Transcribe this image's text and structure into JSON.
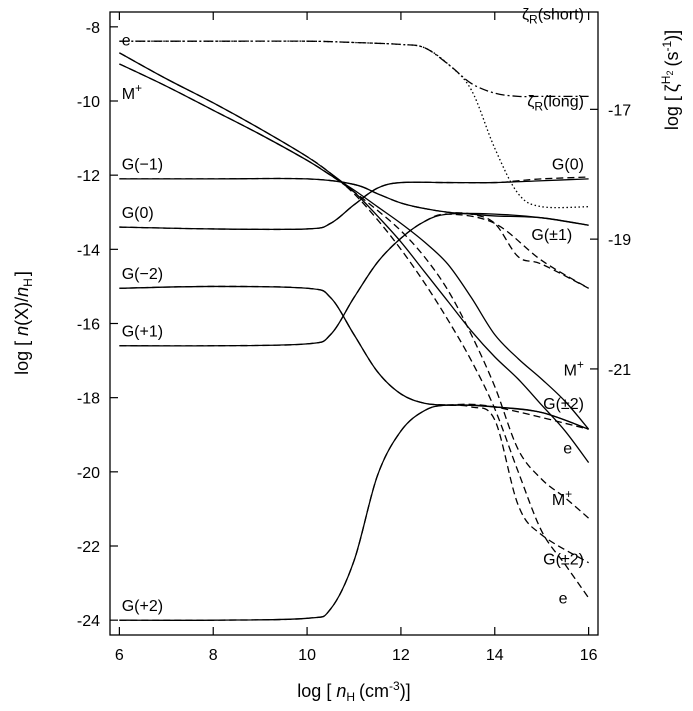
{
  "chart_data": {
    "type": "line",
    "xlabel": "log [ n H (cm-3)]",
    "ylabel": "log [ n(X)/n H ]",
    "y2label": "log [ ζH2 (s-1) ]",
    "xlim": [
      5.8,
      16.2
    ],
    "ylim": [
      -24.4,
      -7.6
    ],
    "y2lim": [
      -25.1,
      -15.5
    ],
    "xticks": [
      6,
      8,
      10,
      12,
      14,
      16
    ],
    "yticks": [
      -8,
      -10,
      -12,
      -14,
      -16,
      -18,
      -20,
      -22,
      -24
    ],
    "y2ticks": [
      -17,
      -19,
      -21
    ],
    "x_tick_labels": [
      "6",
      "8",
      "10",
      "12",
      "14",
      "16"
    ],
    "y_tick_labels": [
      "-8",
      "-10",
      "-12",
      "-14",
      "-16",
      "-18",
      "-20",
      "-22",
      "-24"
    ],
    "y2_tick_labels": [
      "-17",
      "-19",
      "-21"
    ],
    "axis_titles": {
      "x": {
        "pre": "log [",
        "n": "n",
        "sub": "H",
        "unit": "(cm",
        "sup": "-3",
        "post": ")]"
      },
      "y": {
        "pre": "log [",
        "n": "n",
        "mid": "(X)/",
        "n2": "n",
        "sub": "H",
        "post": "]"
      },
      "y2": {
        "pre": "log [",
        "zeta": "ζ",
        "sup": "H",
        "supsub": "2",
        "unit": "(s",
        "unitsup": "-1",
        "post": ")]"
      }
    },
    "series": [
      {
        "name": "e (solid)",
        "style": "solid",
        "x": [
          6,
          7,
          8,
          9,
          10,
          10.5,
          11,
          11.5,
          12,
          12.5,
          13,
          13.5,
          14,
          14.5,
          15,
          15.5,
          16
        ],
        "y": [
          -8.7,
          -9.4,
          -10.05,
          -10.75,
          -11.5,
          -11.95,
          -12.45,
          -13.1,
          -13.8,
          -14.6,
          -15.4,
          -16.2,
          -16.9,
          -17.5,
          -18.2,
          -18.9,
          -19.75
        ]
      },
      {
        "name": "M+ (solid)",
        "style": "solid",
        "x": [
          6,
          7,
          8,
          9,
          10,
          10.5,
          11,
          11.5,
          12,
          12.5,
          13,
          13.5,
          14,
          14.5,
          15,
          15.5,
          16
        ],
        "y": [
          -9.0,
          -9.6,
          -10.25,
          -10.9,
          -11.6,
          -12.0,
          -12.4,
          -12.85,
          -13.3,
          -13.8,
          -14.4,
          -15.3,
          -16.3,
          -16.95,
          -17.5,
          -18.1,
          -18.85
        ]
      },
      {
        "name": "G(-1) (solid)",
        "style": "solid",
        "x": [
          6,
          8,
          10,
          11,
          11.5,
          12,
          12.5,
          13,
          13.5,
          14,
          15,
          16
        ],
        "y": [
          -12.1,
          -12.1,
          -12.1,
          -12.25,
          -12.5,
          -12.75,
          -12.9,
          -13.0,
          -13.05,
          -13.1,
          -13.15,
          -13.35
        ]
      },
      {
        "name": "G(0) (solid)",
        "style": "solid",
        "x": [
          6,
          8,
          10,
          10.5,
          11,
          11.5,
          12,
          13,
          14,
          15,
          16
        ],
        "y": [
          -13.4,
          -13.45,
          -13.45,
          -13.3,
          -12.8,
          -12.35,
          -12.2,
          -12.2,
          -12.2,
          -12.15,
          -12.1
        ]
      },
      {
        "name": "G(-2) (solid)",
        "style": "solid",
        "x": [
          6,
          8,
          10,
          10.5,
          11,
          11.5,
          12,
          12.5,
          13,
          13.5,
          14,
          15,
          16
        ],
        "y": [
          -15.05,
          -15.0,
          -15.05,
          -15.3,
          -16.3,
          -17.3,
          -17.9,
          -18.15,
          -18.2,
          -18.2,
          -18.25,
          -18.4,
          -18.85
        ]
      },
      {
        "name": "G(+1) (solid)",
        "style": "solid",
        "x": [
          6,
          8,
          10,
          10.5,
          11,
          11.5,
          12,
          12.5,
          13,
          14,
          15,
          16
        ],
        "y": [
          -16.6,
          -16.6,
          -16.55,
          -16.3,
          -15.3,
          -14.35,
          -13.7,
          -13.25,
          -13.05,
          -13.05,
          -13.15,
          -13.35
        ]
      },
      {
        "name": "G(+2) (solid)",
        "style": "solid",
        "x": [
          6,
          8,
          10,
          10.5,
          11,
          11.5,
          12,
          12.5,
          13,
          14,
          15,
          16
        ],
        "y": [
          -24.0,
          -24.0,
          -23.95,
          -23.7,
          -22.4,
          -20.1,
          -18.9,
          -18.35,
          -18.2,
          -18.25,
          -18.4,
          -18.85
        ]
      },
      {
        "name": "e (dashed)",
        "style": "dashed",
        "x": [
          6,
          7,
          8,
          9,
          10,
          10.5,
          11,
          11.5,
          12,
          12.5,
          13,
          13.5,
          14,
          14.5,
          15,
          15.5,
          16
        ],
        "y": [
          -8.7,
          -9.4,
          -10.05,
          -10.75,
          -11.5,
          -11.95,
          -12.5,
          -13.2,
          -14.0,
          -14.9,
          -15.9,
          -17.0,
          -18.3,
          -20.0,
          -21.6,
          -22.5,
          -23.4
        ]
      },
      {
        "name": "M+ (dashed)",
        "style": "dashed",
        "x": [
          6,
          7,
          8,
          9,
          10,
          10.5,
          11,
          11.5,
          12,
          12.5,
          13,
          13.5,
          14,
          14.5,
          15,
          15.5,
          16
        ],
        "y": [
          -9.0,
          -9.6,
          -10.25,
          -10.9,
          -11.6,
          -12.0,
          -12.45,
          -12.95,
          -13.5,
          -14.2,
          -15.1,
          -16.3,
          -17.7,
          -19.4,
          -20.2,
          -20.7,
          -21.25
        ]
      },
      {
        "name": "G(0) (dashed)",
        "style": "dashed",
        "x": [
          6,
          8,
          10,
          10.5,
          11,
          11.5,
          12,
          13,
          14,
          14.5,
          15,
          16
        ],
        "y": [
          -13.4,
          -13.45,
          -13.45,
          -13.3,
          -12.8,
          -12.35,
          -12.2,
          -12.2,
          -12.2,
          -12.15,
          -12.1,
          -12.05
        ]
      },
      {
        "name": "G(±1) (dashed)",
        "style": "dashed",
        "x": [
          6,
          8,
          10,
          11,
          11.5,
          12,
          12.5,
          13,
          13.5,
          14,
          14.5,
          15,
          16
        ],
        "y": [
          -12.1,
          -12.1,
          -12.1,
          -12.25,
          -12.5,
          -12.75,
          -12.9,
          -13.0,
          -13.05,
          -13.3,
          -14.2,
          -14.4,
          -15.05
        ]
      },
      {
        "name": "G(±2) (dashed)",
        "style": "dashed",
        "x": [
          6,
          8,
          10,
          10.5,
          11,
          11.5,
          12,
          12.5,
          13,
          13.5,
          14,
          14.5,
          15,
          16
        ],
        "y": [
          -15.05,
          -15.0,
          -15.05,
          -15.3,
          -16.3,
          -17.3,
          -17.9,
          -18.15,
          -18.2,
          -18.25,
          -18.6,
          -20.9,
          -21.7,
          -22.45
        ]
      },
      {
        "name": "G(+1) (dashed)",
        "style": "dashed",
        "x": [
          6,
          8,
          10,
          10.5,
          11,
          11.5,
          12,
          12.5,
          13,
          14,
          15,
          16
        ],
        "y": [
          -16.6,
          -16.6,
          -16.55,
          -16.3,
          -15.3,
          -14.35,
          -13.7,
          -13.25,
          -13.05,
          -13.3,
          -14.3,
          -15.05
        ]
      },
      {
        "name": "G(+2) (dashed)",
        "style": "dashed",
        "x": [
          6,
          8,
          10,
          10.5,
          11,
          11.5,
          12,
          12.5,
          13,
          14,
          16
        ],
        "y": [
          -24.0,
          -24.0,
          -23.95,
          -23.7,
          -22.4,
          -20.1,
          -18.9,
          -18.35,
          -18.2,
          -18.25,
          -18.85
        ]
      },
      {
        "name": "ζR(short)",
        "style": "dashdot",
        "axis": "right",
        "x": [
          6,
          8,
          10,
          11,
          12,
          12.5,
          13,
          13.5,
          14,
          14.5,
          15,
          16
        ],
        "y": [
          -15.95,
          -15.95,
          -15.95,
          -15.97,
          -16.0,
          -16.05,
          -16.3,
          -16.6,
          -16.75,
          -16.8,
          -16.8,
          -16.8
        ]
      },
      {
        "name": "ζR(long)",
        "style": "dotted",
        "axis": "right",
        "x": [
          6,
          8,
          10,
          11,
          12,
          12.5,
          13,
          13.5,
          14,
          14.5,
          15,
          16
        ],
        "y": [
          -15.95,
          -15.95,
          -15.95,
          -15.97,
          -16.0,
          -16.05,
          -16.3,
          -16.7,
          -17.6,
          -18.3,
          -18.5,
          -18.5
        ]
      }
    ],
    "annotations": [
      {
        "text": "e",
        "x": 6.05,
        "y": -8.5,
        "anchor": "start"
      },
      {
        "text": "M+",
        "x": 6.05,
        "y": -9.95,
        "anchor": "start"
      },
      {
        "text": "G(−1)",
        "x": 6.05,
        "y": -11.85,
        "anchor": "start"
      },
      {
        "text": "G(0)",
        "x": 6.05,
        "y": -13.15,
        "anchor": "start"
      },
      {
        "text": "G(−2)",
        "x": 6.05,
        "y": -14.8,
        "anchor": "start"
      },
      {
        "text": "G(+1)",
        "x": 6.05,
        "y": -16.35,
        "anchor": "start"
      },
      {
        "text": "G(+2)",
        "x": 6.05,
        "y": -23.75,
        "anchor": "start"
      },
      {
        "text": "G(0)",
        "x": 15.9,
        "y": -11.85,
        "anchor": "end"
      },
      {
        "text": "G(±1)",
        "x": 15.65,
        "y": -13.75,
        "anchor": "end"
      },
      {
        "text": "M+",
        "x": 15.9,
        "y": -17.4,
        "anchor": "end"
      },
      {
        "text": "G(±2)",
        "x": 15.9,
        "y": -18.3,
        "anchor": "end"
      },
      {
        "text": "e",
        "x": 15.65,
        "y": -19.5,
        "anchor": "end"
      },
      {
        "text": "M+",
        "x": 15.65,
        "y": -20.9,
        "anchor": "end"
      },
      {
        "text": "G(±2)",
        "x": 15.9,
        "y": -22.5,
        "anchor": "end"
      },
      {
        "text": "e",
        "x": 15.55,
        "y": -23.55,
        "anchor": "end"
      },
      {
        "text": "ζR(short)",
        "x": 15.9,
        "y": -7.8,
        "anchor": "end"
      },
      {
        "text": "ζR(long)",
        "x": 15.9,
        "y": -10.15,
        "anchor": "end"
      }
    ]
  }
}
